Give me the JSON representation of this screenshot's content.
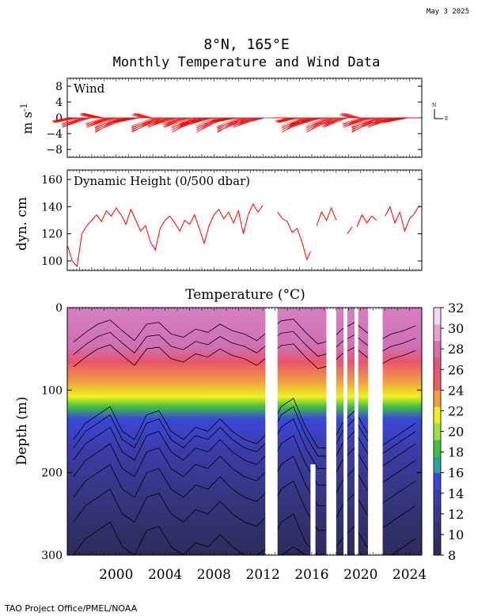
{
  "header": {
    "date": "May  3 2025",
    "title_location": "8°N, 165°E",
    "title_main": "Monthly Temperature and Wind Data",
    "footer": "TAO Project Office/PMEL/NOAA"
  },
  "colors": {
    "wind": "#ff0000",
    "dynamic_height": "#ff0000",
    "contour": "#000000"
  },
  "chart_data": [
    {
      "type": "line",
      "panel": "wind",
      "label": "Wind",
      "ylabel": "m s",
      "ylabel_sup": "-1",
      "ylim": [
        -10,
        10
      ],
      "yticks": [
        8,
        4,
        0,
        -4,
        -8
      ],
      "ytick_labels": [
        "8",
        "4",
        "0",
        "−4",
        "−8"
      ],
      "compass": {
        "north": "N",
        "east": "E"
      },
      "description": "Monthly wind vector sticks (mostly easterly, 4–8 m/s)",
      "x": [
        1996.5,
        1997.5,
        1998.5,
        1999.5,
        2000.5,
        2001.5,
        2002.5,
        2003.5,
        2004.5,
        2005.5,
        2006.5,
        2007.5,
        2008.5,
        2009.5,
        2010.5,
        2011.5,
        2012.5,
        2013.5,
        2014.5,
        2015.5,
        2016.5,
        2017.5,
        2018.5,
        2019.5,
        2020.5,
        2021.5,
        2022.5,
        2023.5,
        2024.5
      ],
      "u": [
        -5,
        -6,
        -4,
        -6,
        -7,
        -5,
        -3,
        -7,
        -6,
        -5,
        -6,
        -7,
        -6,
        -5,
        -7,
        -6,
        -4,
        -2,
        -4,
        -6,
        -7,
        -6,
        -5,
        -3,
        -6,
        -7,
        -6,
        -5,
        -4
      ],
      "v": [
        -1,
        -2,
        1,
        -2,
        -3,
        -1,
        1,
        -3,
        -2,
        -2,
        -3,
        -2,
        -3,
        -1,
        -3,
        -2,
        -1,
        0,
        -1,
        -3,
        -2,
        -3,
        -2,
        1,
        -2,
        -3,
        -2,
        -1,
        0
      ]
    },
    {
      "type": "line",
      "panel": "dynamic_height",
      "label": "Dynamic Height (0/500 dbar)",
      "ylabel": "dyn. cm",
      "ylim": [
        93,
        167
      ],
      "yticks": [
        160,
        140,
        120,
        100
      ],
      "segments": [
        {
          "x": [
            1996.0,
            1996.4,
            1996.8,
            1997.2,
            1997.6,
            1998.0,
            1998.4,
            1998.8,
            1999.2,
            1999.6,
            2000.0,
            2000.4,
            2000.8,
            2001.2,
            2001.6,
            2002.0,
            2002.4,
            2002.8,
            2003.2,
            2003.6,
            2004.0,
            2004.4,
            2004.8,
            2005.2,
            2005.6,
            2006.0,
            2006.4,
            2006.8,
            2007.2,
            2007.6,
            2008.0,
            2008.4,
            2008.8,
            2009.2,
            2009.6,
            2010.0,
            2010.4,
            2010.8,
            2011.2,
            2011.6,
            2012.0
          ],
          "y": [
            112,
            100,
            96,
            120,
            126,
            130,
            134,
            129,
            137,
            133,
            139,
            134,
            127,
            138,
            130,
            122,
            126,
            114,
            108,
            124,
            130,
            133,
            128,
            122,
            130,
            127,
            134,
            124,
            113,
            126,
            134,
            138,
            131,
            136,
            128,
            137,
            120,
            134,
            142,
            136,
            141
          ]
        },
        {
          "x": [
            2013.2,
            2013.6,
            2014.0,
            2014.4,
            2014.8,
            2015.2,
            2015.6,
            2015.9
          ],
          "y": [
            136,
            131,
            129,
            121,
            124,
            114,
            101,
            107
          ]
        },
        {
          "x": [
            2016.4,
            2016.8,
            2017.2,
            2017.6,
            2018.0
          ],
          "y": [
            126,
            136,
            130,
            139,
            130
          ]
        },
        {
          "x": [
            2018.9,
            2019.3
          ],
          "y": [
            120,
            125
          ]
        },
        {
          "x": [
            2019.7,
            2020.1,
            2020.5,
            2020.9,
            2021.3
          ],
          "y": [
            125,
            134,
            128,
            133,
            130
          ]
        },
        {
          "x": [
            2022.0,
            2022.4,
            2022.8,
            2023.2,
            2023.6,
            2024.0,
            2024.4,
            2024.8
          ],
          "y": [
            133,
            140,
            128,
            136,
            122,
            131,
            135,
            141
          ]
        }
      ]
    },
    {
      "type": "heatmap",
      "panel": "temperature",
      "title": "Temperature (°C)",
      "ylabel": "Depth (m)",
      "ylim": [
        0,
        300
      ],
      "yticks": [
        0,
        100,
        200,
        300
      ],
      "xlim": [
        1996.0,
        2025.0
      ],
      "xticks": [
        2000,
        2004,
        2008,
        2012,
        2016,
        2020,
        2024
      ],
      "colorbar": {
        "min": 8,
        "max": 32,
        "ticks": [
          32,
          30,
          28,
          26,
          24,
          22,
          20,
          18,
          16,
          14,
          12,
          10,
          8
        ],
        "colors": [
          "#2e2e5e",
          "#33336f",
          "#3a3a88",
          "#3c3ca8",
          "#3a48d8",
          "#30a0a0",
          "#40c040",
          "#a0e040",
          "#f0f020",
          "#f0a040",
          "#e86060",
          "#e05880",
          "#d870b0",
          "#e8a0d0",
          "#f8d8f0"
        ]
      },
      "gaps": [
        {
          "from": 2012.2,
          "to": 2013.2,
          "top_depth": 0,
          "bottom_depth": 300
        },
        {
          "from": 2015.9,
          "to": 2016.3,
          "top_depth": 190,
          "bottom_depth": 300
        },
        {
          "from": 2017.2,
          "to": 2018.0,
          "top_depth": 0,
          "bottom_depth": 300
        },
        {
          "from": 2018.6,
          "to": 2018.9,
          "top_depth": 0,
          "bottom_depth": 300
        },
        {
          "from": 2019.5,
          "to": 2019.8,
          "top_depth": 0,
          "bottom_depth": 300
        },
        {
          "from": 2020.6,
          "to": 2021.8,
          "top_depth": 0,
          "bottom_depth": 300
        }
      ],
      "isotherm_depth_28": [
        72,
        60,
        50,
        45,
        58,
        70,
        50,
        48,
        62,
        66,
        56,
        60,
        50,
        58,
        62,
        70,
        58,
        46,
        44,
        60,
        74,
        70,
        56,
        48,
        60,
        70,
        62,
        58,
        52
      ],
      "isotherm_depth_20": [
        150,
        130,
        120,
        110,
        140,
        150,
        120,
        115,
        140,
        150,
        135,
        140,
        125,
        140,
        150,
        155,
        140,
        110,
        100,
        135,
        160,
        160,
        130,
        115,
        140,
        160,
        150,
        140,
        130
      ]
    }
  ]
}
